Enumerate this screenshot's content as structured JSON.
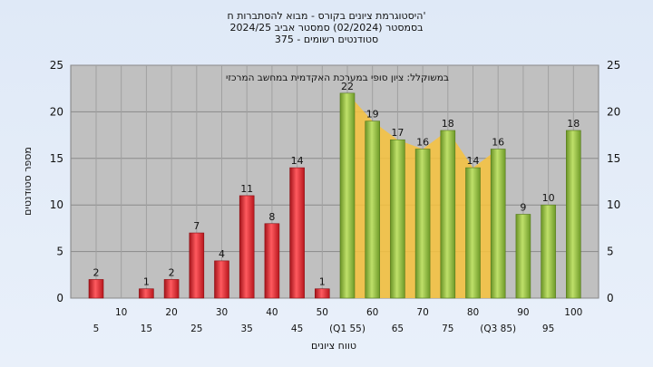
{
  "title_lines": [
    "היסטוגרמת ציונים בקורס - מבוא להסתברות ח'",
    "בסמסטר  (02/2024)  סמסטר אביב 2024/25",
    "375 - סטודנטים רשומים"
  ],
  "chart_data": {
    "type": "bar",
    "annotation": "במשוקלל: ציון סופי במערכת האקדמית במחשב המרכזי",
    "xlabel": "טווח ציונים",
    "ylabel": "מספר סטודנטים",
    "ylim": [
      0,
      25
    ],
    "yticks": [
      0,
      5,
      10,
      15,
      20,
      25
    ],
    "grid": true,
    "bins": [
      5,
      10,
      15,
      20,
      25,
      30,
      35,
      40,
      45,
      50,
      55,
      60,
      65,
      70,
      75,
      80,
      85,
      90,
      95,
      100
    ],
    "values": [
      2,
      0,
      1,
      2,
      7,
      4,
      11,
      8,
      14,
      1,
      22,
      19,
      17,
      16,
      18,
      14,
      16,
      9,
      10,
      18
    ],
    "tick_labels": [
      "5",
      "10",
      "15",
      "20",
      "25",
      "30",
      "35",
      "40",
      "45",
      "50",
      "(Q1 55)",
      "60",
      "65",
      "70",
      "75",
      "80",
      "(Q3 85)",
      "90",
      "95",
      "100"
    ],
    "bar_colors": {
      "fail": "#e8232a",
      "pass": "#8fbf3a"
    },
    "pass_threshold": 55,
    "highlight_band_color": "#f7c23c"
  }
}
